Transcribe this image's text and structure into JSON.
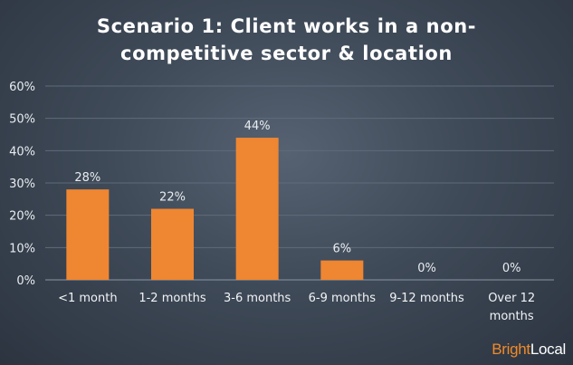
{
  "chart_data": {
    "type": "bar",
    "title_lines": [
      "Scenario 1: Client works in a non-",
      "competitive sector & location"
    ],
    "categories": [
      [
        "<1 month"
      ],
      [
        "1-2 months"
      ],
      [
        "3-6 months"
      ],
      [
        "6-9 months"
      ],
      [
        "9-12 months"
      ],
      [
        "Over 12",
        "months"
      ]
    ],
    "values": [
      28,
      22,
      44,
      6,
      0,
      0
    ],
    "data_labels": [
      "28%",
      "22%",
      "44%",
      "6%",
      "0%",
      "0%"
    ],
    "y_ticks": [
      "0%",
      "10%",
      "20%",
      "30%",
      "40%",
      "50%",
      "60%"
    ],
    "ylim": [
      0,
      60
    ],
    "grid": true,
    "legend": "none",
    "bar_color": "#ef8632",
    "grid_color": "#5f6b7a"
  },
  "brand": {
    "part1": "Bright",
    "part2": "Local"
  }
}
